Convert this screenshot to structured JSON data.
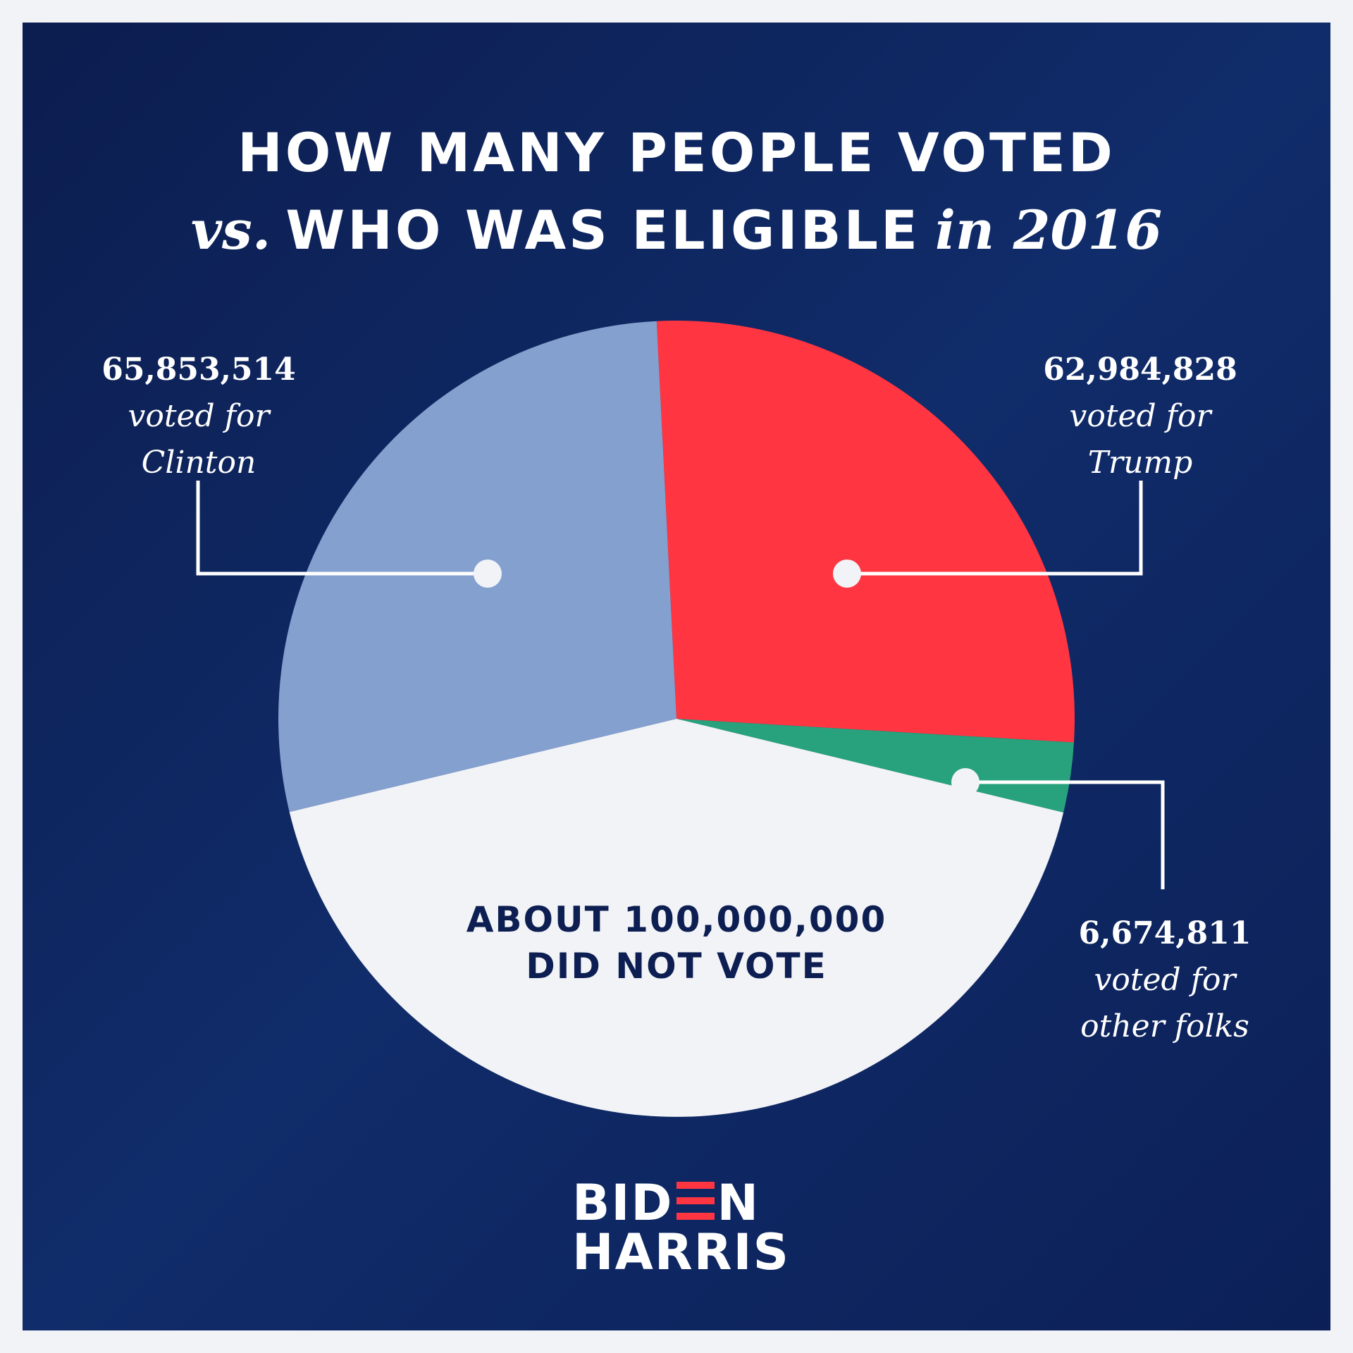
{
  "title": {
    "line1": "HOW MANY PEOPLE VOTED",
    "line2_prefix": "vs.",
    "line2_main": "WHO WAS ELIGIBLE",
    "line2_suffix": "in 2016"
  },
  "chart_data": {
    "type": "pie",
    "title": "HOW MANY PEOPLE VOTED vs. WHO WAS ELIGIBLE in 2016",
    "slices": [
      {
        "label": "Trump",
        "value": 62984828,
        "color": "#ff3542"
      },
      {
        "label": "other folks",
        "value": 6674811,
        "color": "#27a27c"
      },
      {
        "label": "did not vote",
        "value": 100000000,
        "color": "#f2f3f7"
      },
      {
        "label": "Clinton",
        "value": 65853514,
        "color": "#84a0ce"
      }
    ]
  },
  "callouts": {
    "clinton": {
      "number": "65,853,514",
      "line2": "voted for",
      "line3": "Clinton"
    },
    "trump": {
      "number": "62,984,828",
      "line2": "voted for",
      "line3": "Trump"
    },
    "other": {
      "number": "6,674,811",
      "line2": "voted for",
      "line3": "other folks"
    }
  },
  "center_label": {
    "line1": "ABOUT 100,000,000",
    "line2": "DID NOT VOTE"
  },
  "logo": {
    "top_left": "BID",
    "top_right": "N",
    "bottom": "HARRIS",
    "accent": "#ff3542"
  }
}
